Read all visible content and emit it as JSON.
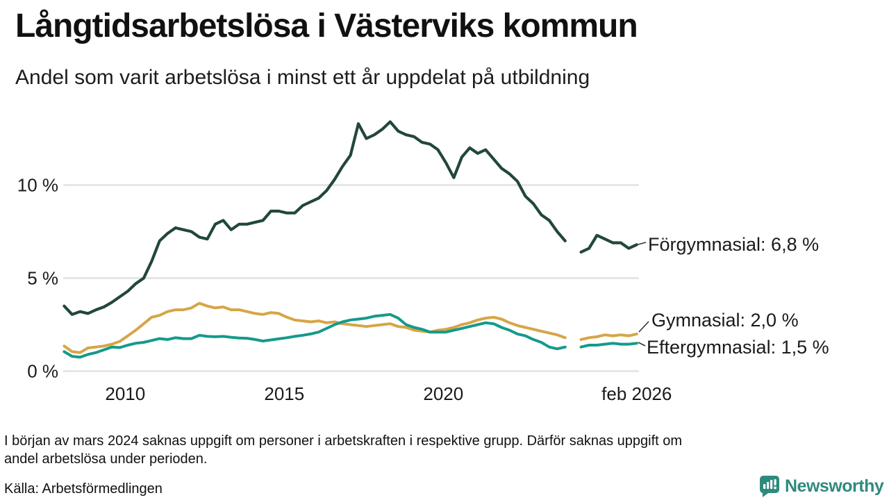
{
  "header": {
    "title": "Långtidsarbetslösa i Västerviks kommun",
    "subtitle": "Andel som varit arbetslösa i minst ett år uppdelat på utbildning"
  },
  "chart_data": {
    "type": "line",
    "title": "Långtidsarbetslösa i Västerviks kommun",
    "subtitle": "Andel som varit arbetslösa i minst ett år uppdelat på utbildning",
    "unit": "%",
    "grid": true,
    "legend_position": "end-of-line-labels",
    "x_axis": {
      "lim": [
        2008.05,
        2026.15
      ],
      "ticks": [
        {
          "x": 2010,
          "label": "2010"
        },
        {
          "x": 2015,
          "label": "2015"
        },
        {
          "x": 2020,
          "label": "2020"
        },
        {
          "x": 2026.08,
          "label": "feb 2026"
        }
      ]
    },
    "y_axis": {
      "lim": [
        0,
        13.9
      ],
      "ticks": [
        {
          "v": 10,
          "label": "10 %"
        },
        {
          "v": 5,
          "label": "5 %"
        },
        {
          "v": 0,
          "label": "0 %"
        }
      ]
    },
    "gap_note": "data missing around early 2024",
    "series": [
      {
        "id": "forgymnasial",
        "name": "Förgymnasial",
        "end_label": "Förgymnasial: 6,8 %",
        "final_value": "6,8 %",
        "color": "#22473c",
        "width": 4.2,
        "start": 2008.08,
        "step": 0.25,
        "values": [
          3.5,
          3.05,
          3.2,
          3.1,
          3.3,
          3.45,
          3.7,
          4.0,
          4.3,
          4.7,
          5.0,
          5.9,
          7.0,
          7.4,
          7.7,
          7.6,
          7.5,
          7.2,
          7.1,
          7.9,
          8.1,
          7.6,
          7.9,
          7.9,
          8.0,
          8.1,
          8.6,
          8.6,
          8.5,
          8.5,
          8.9,
          9.1,
          9.3,
          9.7,
          10.3,
          11.0,
          11.6,
          13.3,
          12.5,
          12.7,
          13.0,
          13.4,
          12.9,
          12.7,
          12.6,
          12.3,
          12.2,
          11.9,
          11.2,
          10.4,
          11.5,
          12.0,
          11.7,
          11.9,
          11.4,
          10.9,
          10.6,
          10.2,
          9.4,
          9.0,
          8.4,
          8.1,
          7.5,
          7.0,
          null,
          6.4,
          6.6,
          7.3,
          7.1,
          6.9,
          6.9,
          6.6,
          6.8
        ]
      },
      {
        "id": "gymnasial",
        "name": "Gymnasial",
        "end_label": "Gymnasial: 2,0 %",
        "final_value": "2,0 %",
        "color": "#d7a546",
        "width": 4,
        "start": 2008.08,
        "step": 0.25,
        "values": [
          1.35,
          1.05,
          1.0,
          1.25,
          1.3,
          1.35,
          1.45,
          1.6,
          1.9,
          2.2,
          2.55,
          2.9,
          3.0,
          3.2,
          3.3,
          3.3,
          3.4,
          3.65,
          3.5,
          3.4,
          3.45,
          3.3,
          3.3,
          3.2,
          3.1,
          3.05,
          3.15,
          3.1,
          2.9,
          2.75,
          2.7,
          2.65,
          2.7,
          2.6,
          2.65,
          2.55,
          2.5,
          2.45,
          2.4,
          2.45,
          2.5,
          2.55,
          2.4,
          2.35,
          2.2,
          2.15,
          2.1,
          2.2,
          2.25,
          2.35,
          2.5,
          2.6,
          2.75,
          2.85,
          2.9,
          2.8,
          2.6,
          2.45,
          2.35,
          2.25,
          2.15,
          2.05,
          1.95,
          1.8,
          null,
          1.7,
          1.8,
          1.85,
          1.95,
          1.9,
          1.95,
          1.9,
          2.0
        ]
      },
      {
        "id": "eftergymnasial",
        "name": "Eftergymnasial",
        "end_label": "Eftergymnasial: 1,5 %",
        "final_value": "1,5 %",
        "color": "#149a8b",
        "width": 4,
        "start": 2008.08,
        "step": 0.25,
        "values": [
          1.05,
          0.8,
          0.75,
          0.9,
          1.0,
          1.15,
          1.3,
          1.27,
          1.4,
          1.5,
          1.55,
          1.65,
          1.75,
          1.7,
          1.8,
          1.75,
          1.75,
          1.93,
          1.87,
          1.85,
          1.87,
          1.82,
          1.78,
          1.77,
          1.7,
          1.62,
          1.68,
          1.74,
          1.8,
          1.87,
          1.93,
          2.0,
          2.1,
          2.3,
          2.5,
          2.65,
          2.75,
          2.8,
          2.85,
          2.95,
          3.0,
          3.05,
          2.85,
          2.5,
          2.35,
          2.25,
          2.1,
          2.1,
          2.1,
          2.2,
          2.3,
          2.4,
          2.5,
          2.6,
          2.55,
          2.35,
          2.2,
          2.0,
          1.9,
          1.7,
          1.55,
          1.3,
          1.2,
          1.3,
          null,
          1.3,
          1.4,
          1.4,
          1.45,
          1.5,
          1.45,
          1.45,
          1.5
        ]
      }
    ]
  },
  "footer": {
    "note_line1": "I början av mars 2024 saknas uppgift om personer i arbetskraften i respektive grupp. Därför saknas uppgift om",
    "note_line2": "andel arbetslösa under perioden.",
    "source": "Källa: Arbetsförmedlingen",
    "brand": "Newsworthy",
    "brand_color": "#2f8a7e"
  }
}
